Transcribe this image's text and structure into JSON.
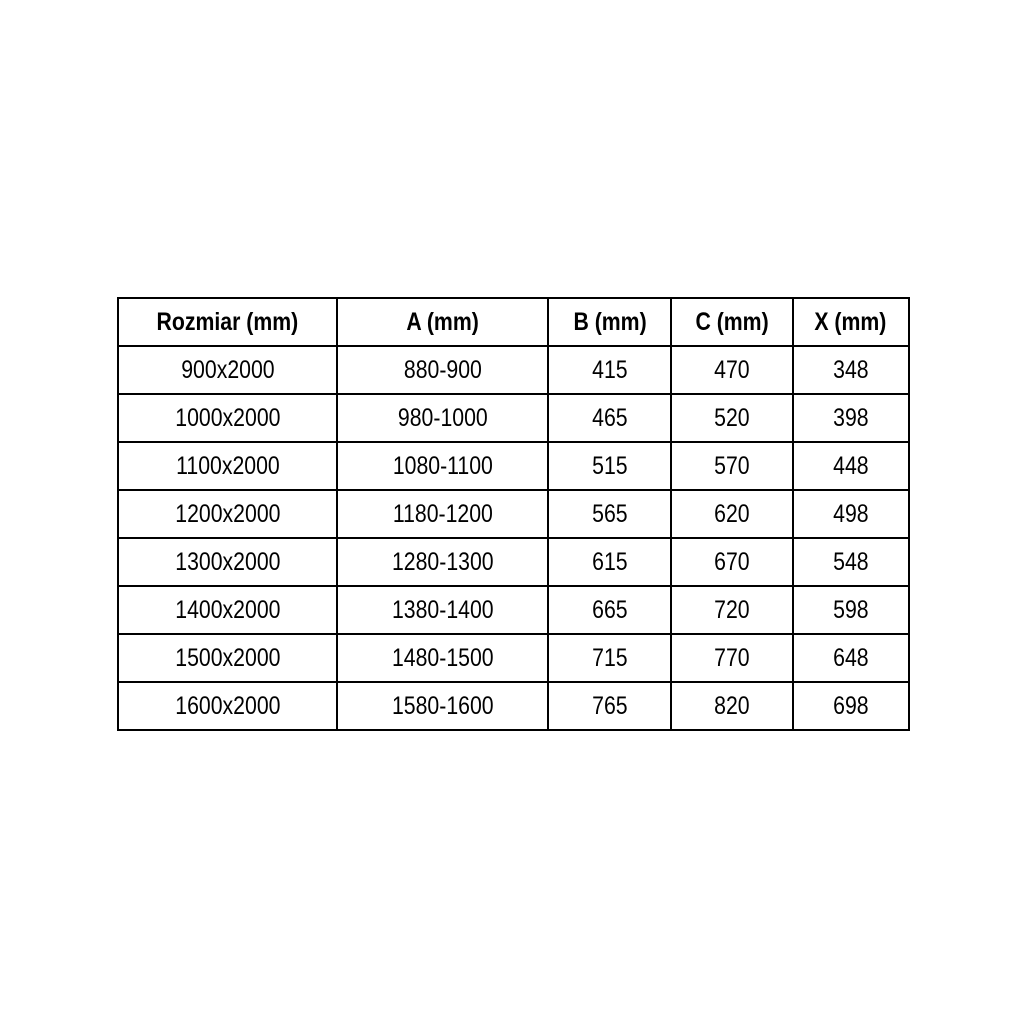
{
  "page": {
    "background_color": "#ffffff",
    "text_color": "#000000",
    "border_color": "#000000"
  },
  "table": {
    "columns": [
      "Rozmiar (mm)",
      "A (mm)",
      "B (mm)",
      "C (mm)",
      "X (mm)"
    ],
    "rows": [
      [
        "900x2000",
        "880-900",
        "415",
        "470",
        "348"
      ],
      [
        "1000x2000",
        "980-1000",
        "465",
        "520",
        "398"
      ],
      [
        "1100x2000",
        "1080-1100",
        "515",
        "570",
        "448"
      ],
      [
        "1200x2000",
        "1180-1200",
        "565",
        "620",
        "498"
      ],
      [
        "1300x2000",
        "1280-1300",
        "615",
        "670",
        "548"
      ],
      [
        "1400x2000",
        "1380-1400",
        "665",
        "720",
        "598"
      ],
      [
        "1500x2000",
        "1480-1500",
        "715",
        "770",
        "648"
      ],
      [
        "1600x2000",
        "1580-1600",
        "765",
        "820",
        "698"
      ]
    ]
  }
}
